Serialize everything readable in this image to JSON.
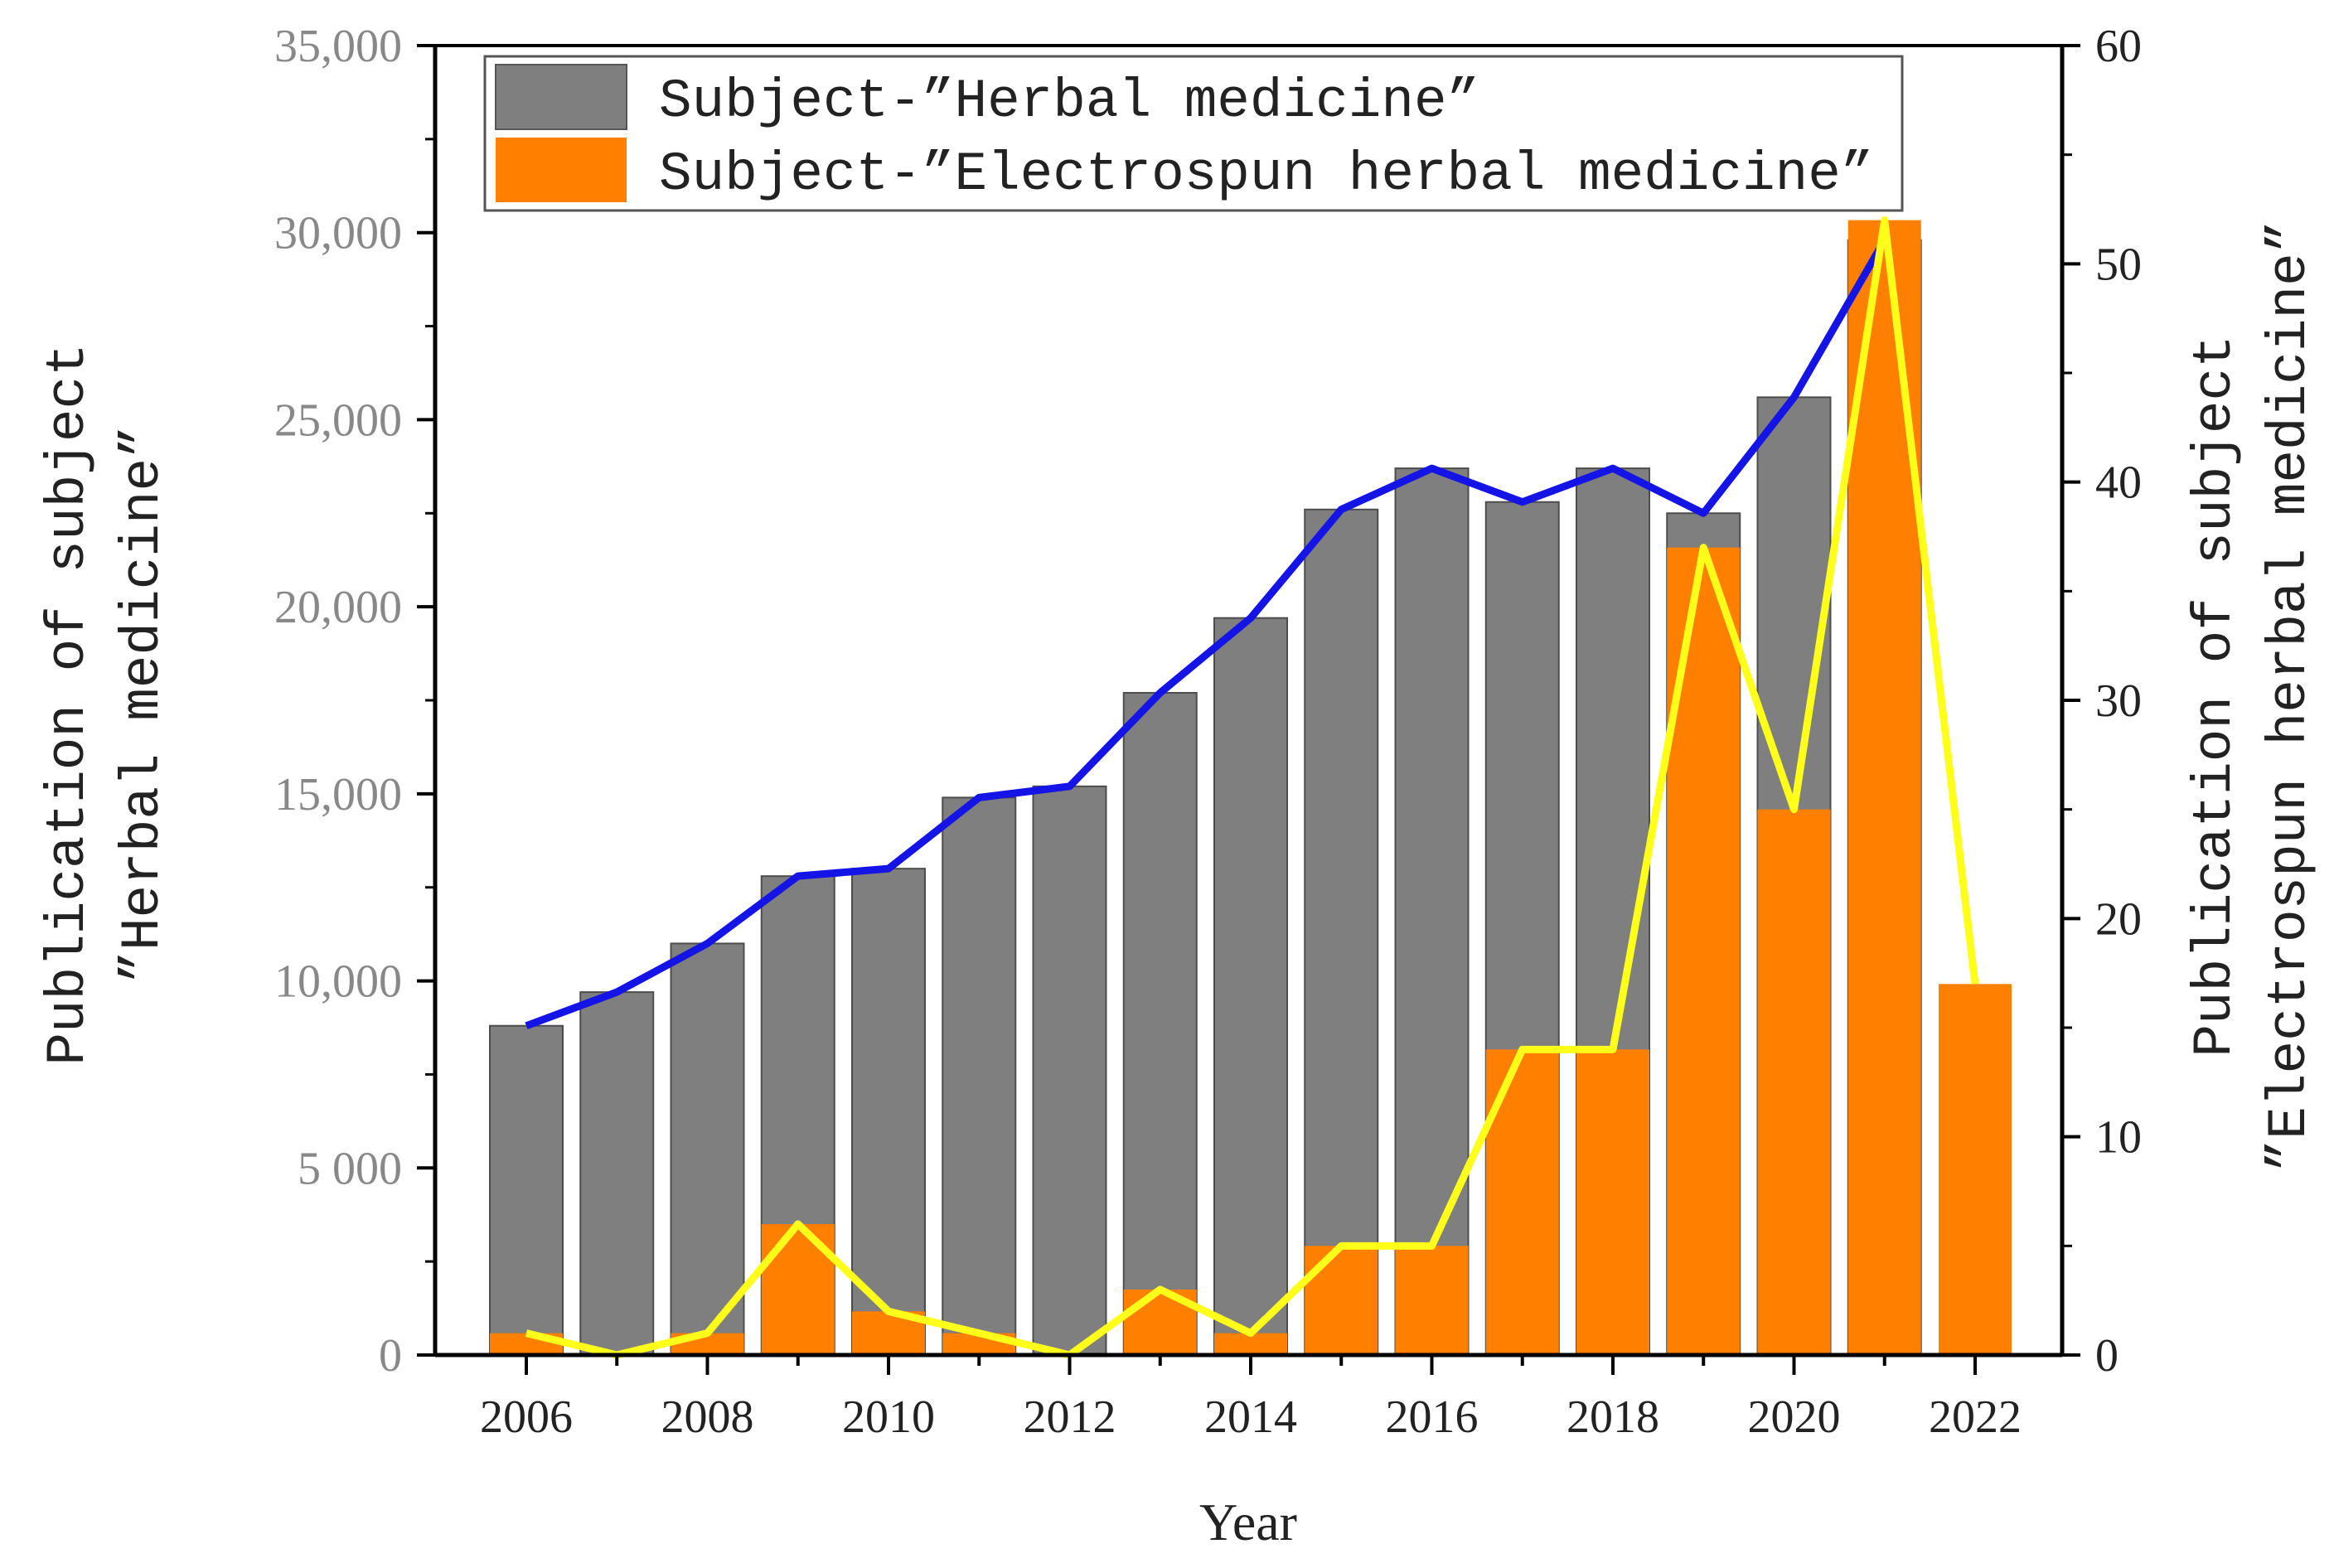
{
  "chart_data": {
    "type": "bar",
    "title": "",
    "xlabel": "Year",
    "ylabel": [
      "Publication of subject",
      "”Herbal medicine”"
    ],
    "y2label": [
      "Publication of subject",
      "”Electrospun herbal medicine”"
    ],
    "ylim": [
      0,
      35000
    ],
    "y2lim": [
      0,
      60
    ],
    "categories": [
      2006,
      2007,
      2008,
      2009,
      2010,
      2011,
      2012,
      2013,
      2014,
      2015,
      2016,
      2017,
      2018,
      2019,
      2020,
      2021,
      2022
    ],
    "x_tick_labels": [
      "2006",
      "2008",
      "2010",
      "2012",
      "2014",
      "2016",
      "2018",
      "2020",
      "2022"
    ],
    "y_tick_labels": [
      "0",
      "5 000",
      "10,000",
      "15,000",
      "20,000",
      "25,000",
      "30,000",
      "35,000"
    ],
    "y_tick_values": [
      0,
      5000,
      10000,
      15000,
      20000,
      25000,
      30000,
      35000
    ],
    "y2_tick_labels": [
      "0",
      "10",
      "20",
      "30",
      "40",
      "50",
      "60"
    ],
    "y2_tick_values": [
      0,
      10,
      20,
      30,
      40,
      50,
      60
    ],
    "series": [
      {
        "name": "Subject-”Herbal medicine”",
        "axis": "left",
        "values": [
          8800,
          9700,
          11000,
          12800,
          13000,
          14900,
          15200,
          17700,
          19700,
          22600,
          23700,
          22800,
          23700,
          22500,
          25600,
          29800,
          null
        ]
      },
      {
        "name": "Subject-”Electrospun herbal medicine”",
        "axis": "right",
        "values": [
          1,
          0,
          1,
          6,
          2,
          1,
          0,
          3,
          1,
          5,
          5,
          14,
          14,
          37,
          25,
          52,
          17
        ]
      }
    ],
    "colors": {
      "herbal_bar": "#7f7f7f",
      "electrospun_bar": "#ff7f00",
      "herbal_line": "#1414e6",
      "electrospun_line": "#ffff1a"
    },
    "legend_position": "top-left"
  }
}
